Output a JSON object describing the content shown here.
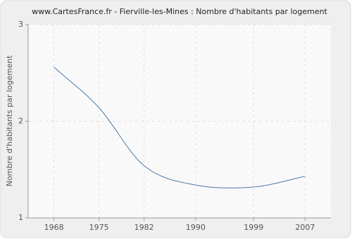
{
  "chart_data": {
    "type": "line",
    "title": "www.CartesFrance.fr - Fierville-les-Mines : Nombre d'habitants par logement",
    "y_label": "Nombre d'habitants par logement",
    "x": [
      1968,
      1975,
      1982,
      1990,
      1999,
      2007
    ],
    "series": [
      {
        "name": "Nombre d'habitants par logement",
        "color": "#4a7aab",
        "values": [
          2.56,
          2.14,
          1.54,
          1.34,
          1.32,
          1.43
        ]
      }
    ],
    "xlim": [
      1964,
      2011
    ],
    "xticks": [
      1968,
      1975,
      1982,
      1990,
      1999,
      2007
    ],
    "ylim": [
      1,
      3
    ],
    "yticks": [
      1,
      2,
      3
    ],
    "grid": true
  }
}
